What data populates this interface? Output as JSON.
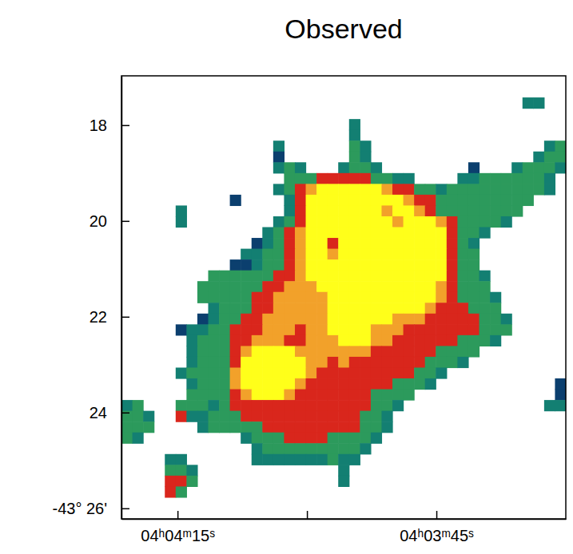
{
  "chart_data": {
    "type": "heatmap",
    "title": "Observed",
    "xlim": [
      261.5,
      210
    ],
    "ylim": [
      26.22,
      16.97
    ],
    "xticks": [
      {
        "value": 255,
        "label": "04ʰ04ᵐ15ˢ"
      },
      {
        "value": 240,
        "label": null
      },
      {
        "value": 225,
        "label": "04ʰ03ᵐ45ˢ"
      }
    ],
    "yticks": [
      18,
      20,
      22,
      24,
      {
        "value": 26,
        "label": "-43° 26'"
      }
    ],
    "zlim": [
      1,
      6
    ],
    "colorscale": [
      "#0b3f6e",
      "#137f72",
      "#2c9a5c",
      "#d9261c",
      "#f2a12a",
      "#ffff1a"
    ],
    "z": [
      [
        0,
        0,
        0,
        0,
        0,
        0,
        0,
        0,
        0,
        0,
        0,
        0,
        0,
        0,
        0,
        0,
        0,
        0,
        0,
        0,
        0,
        0,
        0,
        0,
        0,
        0,
        0,
        0,
        0,
        0,
        0,
        0,
        0,
        0,
        0,
        0,
        0,
        0,
        0,
        0,
        0
      ],
      [
        0,
        0,
        0,
        0,
        0,
        0,
        0,
        0,
        0,
        0,
        0,
        0,
        0,
        0,
        0,
        0,
        0,
        0,
        0,
        0,
        0,
        0,
        0,
        0,
        0,
        0,
        0,
        0,
        0,
        0,
        0,
        0,
        0,
        0,
        0,
        0,
        0,
        0,
        0,
        0,
        0
      ],
      [
        0,
        0,
        0,
        0,
        0,
        0,
        0,
        0,
        0,
        0,
        0,
        0,
        0,
        0,
        0,
        0,
        0,
        0,
        0,
        0,
        0,
        0,
        0,
        0,
        0,
        0,
        0,
        0,
        0,
        0,
        0,
        0,
        0,
        0,
        0,
        0,
        0,
        2,
        2,
        0,
        0
      ],
      [
        0,
        0,
        0,
        0,
        0,
        0,
        0,
        0,
        0,
        0,
        0,
        0,
        0,
        0,
        0,
        0,
        0,
        0,
        0,
        0,
        0,
        0,
        0,
        0,
        0,
        0,
        0,
        0,
        0,
        0,
        0,
        0,
        0,
        0,
        0,
        0,
        0,
        0,
        0,
        0,
        0
      ],
      [
        0,
        0,
        0,
        0,
        0,
        0,
        0,
        0,
        0,
        0,
        0,
        0,
        0,
        0,
        0,
        0,
        0,
        0,
        0,
        0,
        0,
        2,
        0,
        0,
        0,
        0,
        0,
        0,
        0,
        0,
        0,
        0,
        0,
        0,
        0,
        0,
        0,
        0,
        0,
        0,
        0
      ],
      [
        0,
        0,
        0,
        0,
        0,
        0,
        0,
        0,
        0,
        0,
        0,
        0,
        0,
        0,
        0,
        0,
        0,
        0,
        0,
        0,
        0,
        2,
        0,
        0,
        0,
        0,
        0,
        0,
        0,
        0,
        0,
        0,
        0,
        0,
        0,
        0,
        0,
        0,
        0,
        0,
        0
      ],
      [
        0,
        0,
        0,
        0,
        0,
        0,
        0,
        0,
        0,
        0,
        0,
        0,
        0,
        0,
        2,
        0,
        0,
        0,
        0,
        0,
        0,
        3,
        2,
        0,
        0,
        0,
        0,
        0,
        0,
        0,
        0,
        0,
        0,
        0,
        0,
        0,
        0,
        0,
        0,
        2,
        3
      ],
      [
        0,
        0,
        0,
        0,
        0,
        0,
        0,
        0,
        0,
        0,
        0,
        0,
        0,
        0,
        1,
        0,
        0,
        0,
        0,
        0,
        0,
        3,
        2,
        0,
        0,
        0,
        0,
        0,
        0,
        0,
        0,
        0,
        0,
        0,
        0,
        0,
        0,
        0,
        2,
        3,
        3
      ],
      [
        0,
        0,
        0,
        0,
        0,
        0,
        0,
        0,
        0,
        0,
        0,
        0,
        0,
        0,
        2,
        3,
        2,
        0,
        0,
        0,
        2,
        3,
        3,
        2,
        0,
        0,
        0,
        0,
        0,
        0,
        0,
        0,
        1,
        0,
        0,
        0,
        2,
        3,
        3,
        3,
        2
      ],
      [
        0,
        0,
        0,
        0,
        0,
        0,
        0,
        0,
        0,
        0,
        0,
        0,
        0,
        0,
        0,
        3,
        3,
        3,
        4,
        4,
        4,
        4,
        4,
        3,
        3,
        2,
        2,
        0,
        0,
        0,
        0,
        2,
        2,
        3,
        3,
        3,
        3,
        3,
        3,
        2,
        0
      ],
      [
        0,
        0,
        0,
        0,
        0,
        0,
        0,
        0,
        0,
        0,
        0,
        0,
        0,
        0,
        2,
        3,
        4,
        5,
        6,
        6,
        6,
        6,
        6,
        6,
        5,
        4,
        4,
        3,
        3,
        2,
        3,
        3,
        3,
        3,
        3,
        3,
        3,
        3,
        3,
        2,
        0
      ],
      [
        0,
        0,
        0,
        0,
        0,
        0,
        0,
        0,
        0,
        0,
        1,
        0,
        0,
        0,
        0,
        2,
        4,
        6,
        6,
        6,
        6,
        6,
        6,
        6,
        6,
        6,
        5,
        4,
        4,
        3,
        3,
        3,
        3,
        3,
        3,
        3,
        3,
        3,
        0,
        0,
        0
      ],
      [
        0,
        0,
        0,
        0,
        0,
        2,
        0,
        0,
        0,
        0,
        0,
        0,
        0,
        0,
        0,
        2,
        4,
        6,
        6,
        6,
        6,
        6,
        6,
        6,
        5,
        6,
        6,
        5,
        4,
        3,
        3,
        3,
        3,
        3,
        3,
        3,
        3,
        0,
        0,
        0,
        0
      ],
      [
        0,
        0,
        0,
        0,
        0,
        2,
        0,
        0,
        0,
        0,
        0,
        0,
        0,
        0,
        2,
        3,
        4,
        6,
        6,
        6,
        6,
        6,
        6,
        6,
        6,
        5,
        6,
        6,
        6,
        5,
        4,
        3,
        3,
        3,
        3,
        2,
        0,
        0,
        0,
        0,
        0
      ],
      [
        0,
        0,
        0,
        0,
        0,
        0,
        0,
        0,
        0,
        0,
        0,
        0,
        0,
        2,
        3,
        4,
        5,
        6,
        6,
        6,
        6,
        6,
        6,
        6,
        6,
        6,
        6,
        6,
        6,
        6,
        4,
        3,
        3,
        2,
        0,
        0,
        0,
        0,
        0,
        0,
        0
      ],
      [
        0,
        0,
        0,
        0,
        0,
        0,
        0,
        0,
        0,
        0,
        0,
        0,
        1,
        2,
        3,
        4,
        5,
        6,
        6,
        4,
        6,
        6,
        6,
        6,
        6,
        6,
        6,
        6,
        6,
        6,
        4,
        3,
        2,
        0,
        0,
        0,
        0,
        0,
        0,
        0,
        0
      ],
      [
        0,
        0,
        0,
        0,
        0,
        0,
        0,
        0,
        0,
        0,
        0,
        2,
        2,
        3,
        3,
        4,
        5,
        6,
        6,
        5,
        6,
        6,
        6,
        6,
        6,
        6,
        6,
        6,
        6,
        6,
        4,
        3,
        3,
        0,
        0,
        0,
        0,
        0,
        0,
        0,
        0
      ],
      [
        0,
        0,
        0,
        0,
        0,
        0,
        0,
        0,
        0,
        0,
        1,
        1,
        2,
        3,
        3,
        4,
        5,
        6,
        6,
        6,
        6,
        6,
        6,
        6,
        6,
        6,
        6,
        6,
        6,
        6,
        4,
        3,
        3,
        0,
        0,
        0,
        0,
        0,
        0,
        0,
        0
      ],
      [
        0,
        0,
        0,
        0,
        0,
        0,
        0,
        0,
        3,
        3,
        3,
        3,
        3,
        3,
        4,
        4,
        5,
        6,
        6,
        6,
        6,
        6,
        6,
        6,
        6,
        6,
        6,
        6,
        6,
        6,
        4,
        3,
        3,
        2,
        0,
        0,
        0,
        0,
        0,
        0,
        0
      ],
      [
        0,
        0,
        0,
        0,
        0,
        0,
        0,
        3,
        3,
        3,
        3,
        3,
        3,
        4,
        4,
        5,
        5,
        5,
        6,
        6,
        6,
        6,
        6,
        6,
        6,
        6,
        6,
        6,
        6,
        5,
        4,
        3,
        3,
        3,
        0,
        0,
        0,
        0,
        0,
        0,
        0
      ],
      [
        0,
        0,
        0,
        0,
        0,
        0,
        0,
        3,
        3,
        3,
        3,
        3,
        4,
        4,
        5,
        5,
        5,
        5,
        5,
        6,
        6,
        6,
        6,
        6,
        6,
        6,
        6,
        6,
        6,
        5,
        4,
        3,
        3,
        3,
        2,
        0,
        0,
        0,
        0,
        0,
        0
      ],
      [
        0,
        0,
        0,
        0,
        0,
        0,
        0,
        0,
        2,
        3,
        3,
        3,
        4,
        4,
        5,
        5,
        5,
        5,
        5,
        6,
        6,
        6,
        6,
        6,
        6,
        6,
        6,
        6,
        5,
        4,
        4,
        4,
        3,
        3,
        3,
        0,
        0,
        0,
        0,
        0,
        0
      ],
      [
        0,
        0,
        0,
        0,
        0,
        0,
        0,
        1,
        2,
        3,
        3,
        4,
        4,
        5,
        5,
        5,
        5,
        5,
        5,
        6,
        6,
        6,
        6,
        6,
        6,
        5,
        5,
        5,
        4,
        4,
        4,
        4,
        4,
        3,
        3,
        2,
        0,
        0,
        0,
        0,
        0
      ],
      [
        0,
        0,
        0,
        0,
        0,
        1,
        2,
        2,
        3,
        3,
        4,
        4,
        4,
        5,
        5,
        5,
        4,
        5,
        5,
        6,
        6,
        6,
        6,
        5,
        5,
        5,
        4,
        4,
        4,
        4,
        4,
        4,
        4,
        3,
        3,
        3,
        0,
        0,
        0,
        0,
        0
      ],
      [
        0,
        0,
        0,
        0,
        0,
        0,
        2,
        3,
        3,
        3,
        4,
        4,
        5,
        5,
        5,
        4,
        4,
        5,
        5,
        5,
        6,
        6,
        6,
        5,
        5,
        4,
        4,
        4,
        4,
        4,
        4,
        3,
        3,
        3,
        2,
        0,
        0,
        0,
        0,
        0,
        0
      ],
      [
        0,
        0,
        0,
        0,
        0,
        0,
        2,
        3,
        3,
        3,
        4,
        5,
        6,
        6,
        6,
        6,
        5,
        5,
        5,
        5,
        5,
        5,
        5,
        4,
        4,
        4,
        4,
        4,
        4,
        3,
        3,
        3,
        3,
        0,
        0,
        0,
        0,
        0,
        0,
        0,
        0
      ],
      [
        0,
        0,
        0,
        0,
        0,
        0,
        2,
        3,
        3,
        3,
        4,
        6,
        6,
        6,
        6,
        6,
        6,
        5,
        5,
        4,
        5,
        4,
        4,
        4,
        4,
        4,
        4,
        4,
        3,
        3,
        3,
        2,
        0,
        0,
        0,
        0,
        0,
        0,
        0,
        0,
        0
      ],
      [
        0,
        0,
        0,
        0,
        0,
        2,
        3,
        3,
        3,
        3,
        5,
        6,
        6,
        6,
        6,
        6,
        6,
        5,
        4,
        4,
        4,
        4,
        4,
        4,
        4,
        4,
        4,
        3,
        3,
        2,
        0,
        0,
        0,
        0,
        0,
        0,
        0,
        0,
        0,
        0,
        0
      ],
      [
        0,
        0,
        0,
        0,
        0,
        0,
        2,
        3,
        3,
        3,
        5,
        6,
        6,
        6,
        6,
        6,
        5,
        4,
        4,
        4,
        4,
        4,
        4,
        4,
        4,
        3,
        3,
        3,
        2,
        0,
        0,
        0,
        0,
        0,
        0,
        0,
        0,
        0,
        0,
        0,
        1
      ],
      [
        0,
        0,
        0,
        0,
        0,
        0,
        3,
        3,
        3,
        3,
        4,
        5,
        6,
        6,
        6,
        5,
        4,
        4,
        4,
        4,
        4,
        4,
        4,
        3,
        3,
        3,
        3,
        0,
        0,
        0,
        0,
        0,
        0,
        0,
        0,
        0,
        0,
        0,
        0,
        0,
        1
      ],
      [
        2,
        3,
        0,
        0,
        0,
        3,
        3,
        3,
        2,
        3,
        4,
        4,
        4,
        4,
        4,
        4,
        4,
        4,
        4,
        4,
        4,
        4,
        4,
        3,
        3,
        2,
        0,
        0,
        0,
        0,
        0,
        0,
        0,
        0,
        0,
        0,
        0,
        0,
        0,
        2,
        2
      ],
      [
        3,
        3,
        2,
        0,
        0,
        4,
        2,
        2,
        3,
        3,
        3,
        4,
        4,
        4,
        4,
        4,
        4,
        4,
        4,
        4,
        4,
        4,
        3,
        3,
        2,
        0,
        0,
        0,
        0,
        0,
        0,
        0,
        0,
        0,
        0,
        0,
        0,
        0,
        0,
        0,
        0
      ],
      [
        3,
        3,
        3,
        0,
        0,
        0,
        0,
        2,
        3,
        3,
        3,
        3,
        3,
        4,
        4,
        4,
        4,
        4,
        4,
        4,
        4,
        4,
        3,
        3,
        2,
        0,
        0,
        0,
        0,
        0,
        0,
        0,
        0,
        0,
        0,
        0,
        0,
        0,
        0,
        0,
        0
      ],
      [
        3,
        2,
        0,
        0,
        0,
        0,
        0,
        0,
        0,
        0,
        0,
        2,
        3,
        3,
        3,
        4,
        4,
        4,
        4,
        3,
        3,
        3,
        3,
        2,
        0,
        0,
        0,
        0,
        0,
        0,
        0,
        0,
        0,
        0,
        0,
        0,
        0,
        0,
        0,
        0,
        0
      ],
      [
        0,
        0,
        0,
        0,
        0,
        0,
        0,
        0,
        0,
        0,
        0,
        0,
        2,
        3,
        3,
        3,
        3,
        3,
        3,
        3,
        3,
        3,
        2,
        0,
        0,
        0,
        0,
        0,
        0,
        0,
        0,
        0,
        0,
        0,
        0,
        0,
        0,
        0,
        0,
        0,
        0
      ],
      [
        0,
        0,
        0,
        0,
        2,
        2,
        0,
        0,
        0,
        0,
        0,
        0,
        2,
        2,
        2,
        2,
        2,
        2,
        2,
        3,
        2,
        2,
        0,
        0,
        0,
        0,
        0,
        0,
        0,
        0,
        0,
        0,
        0,
        0,
        0,
        0,
        0,
        0,
        0,
        0,
        0
      ],
      [
        0,
        0,
        0,
        0,
        3,
        3,
        2,
        0,
        0,
        0,
        0,
        0,
        0,
        0,
        0,
        0,
        0,
        0,
        0,
        0,
        2,
        0,
        0,
        0,
        0,
        0,
        0,
        0,
        0,
        0,
        0,
        0,
        0,
        0,
        0,
        0,
        0,
        0,
        0,
        0,
        0
      ],
      [
        0,
        0,
        0,
        0,
        4,
        4,
        3,
        0,
        0,
        0,
        0,
        0,
        0,
        0,
        0,
        0,
        0,
        0,
        0,
        0,
        2,
        0,
        0,
        0,
        0,
        0,
        0,
        0,
        0,
        0,
        0,
        0,
        0,
        0,
        0,
        0,
        0,
        0,
        0,
        0,
        0
      ],
      [
        0,
        0,
        0,
        0,
        4,
        3,
        0,
        0,
        0,
        0,
        0,
        0,
        0,
        0,
        0,
        0,
        0,
        0,
        0,
        0,
        0,
        0,
        0,
        0,
        0,
        0,
        0,
        0,
        0,
        0,
        0,
        0,
        0,
        0,
        0,
        0,
        0,
        0,
        0,
        0,
        0
      ],
      [
        0,
        0,
        0,
        0,
        0,
        0,
        0,
        0,
        0,
        0,
        0,
        0,
        0,
        0,
        0,
        0,
        0,
        0,
        0,
        0,
        0,
        0,
        0,
        0,
        0,
        0,
        0,
        0,
        0,
        0,
        0,
        0,
        0,
        0,
        0,
        0,
        0,
        0,
        0,
        0,
        0
      ],
      [
        0,
        0,
        0,
        0,
        0,
        0,
        0,
        0,
        0,
        0,
        0,
        0,
        0,
        0,
        0,
        0,
        0,
        0,
        0,
        0,
        0,
        0,
        0,
        0,
        0,
        0,
        0,
        0,
        0,
        0,
        0,
        0,
        0,
        0,
        0,
        0,
        0,
        0,
        0,
        0,
        0
      ]
    ]
  }
}
